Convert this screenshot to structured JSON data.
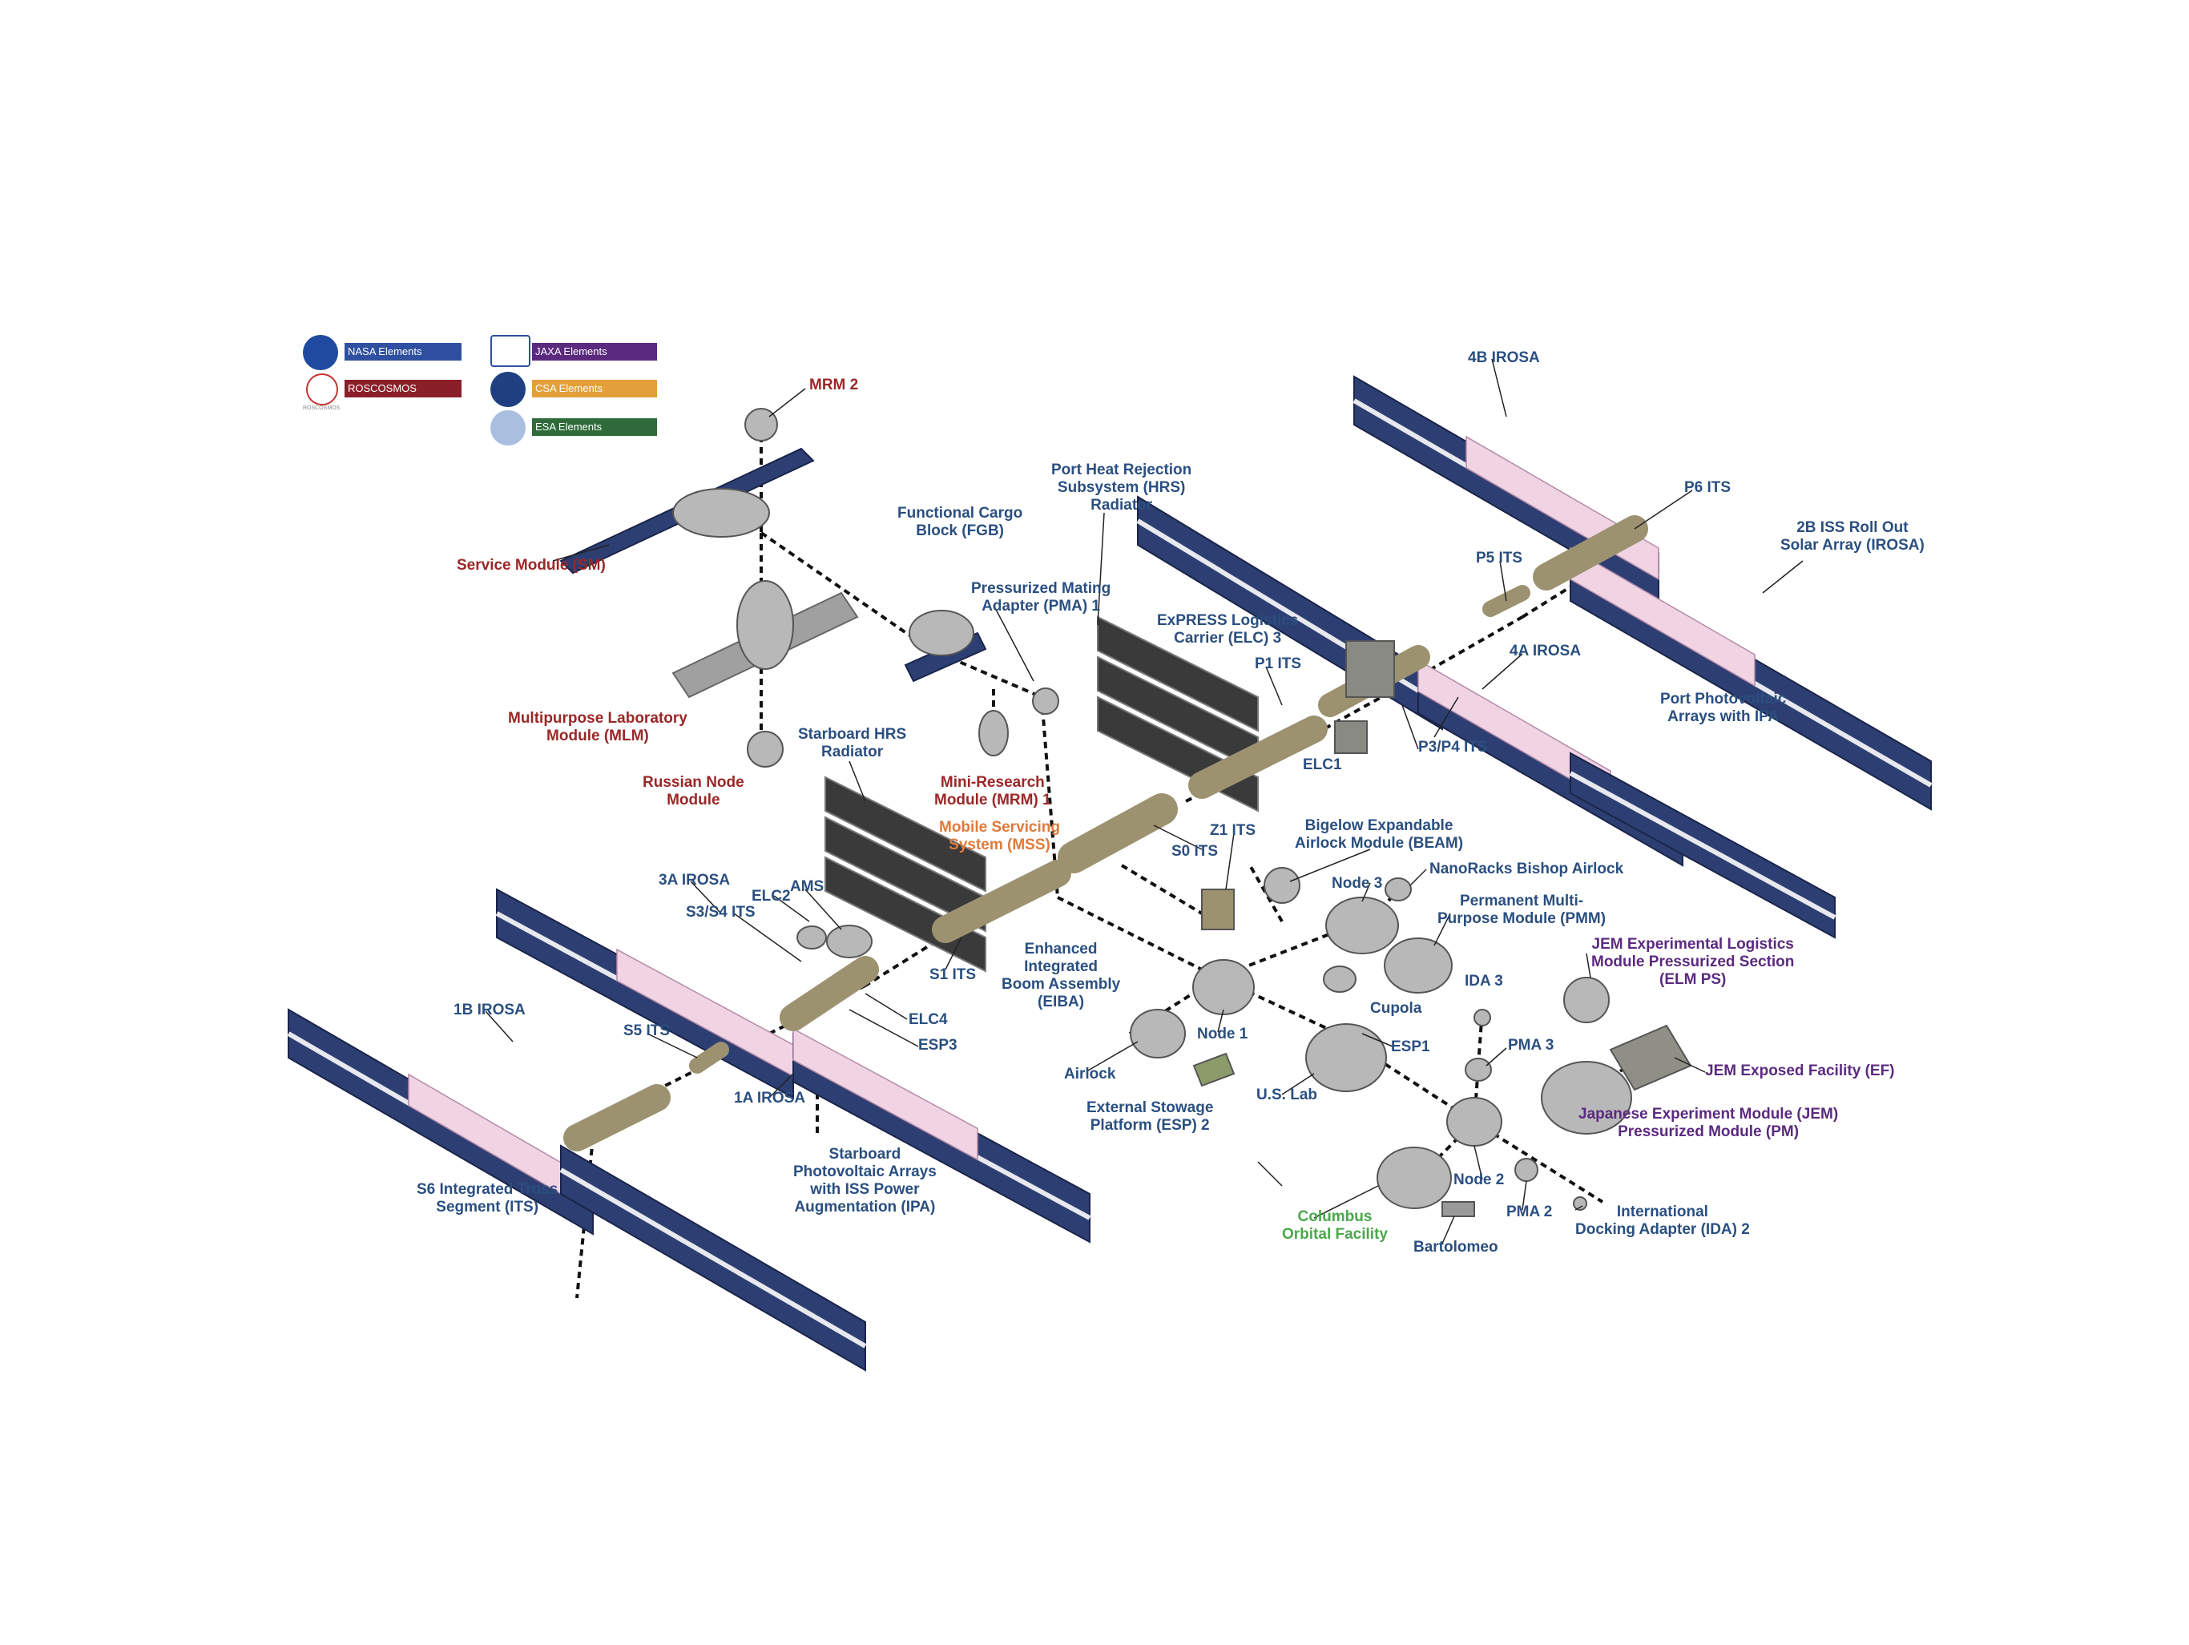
{
  "legend": {
    "nasa": {
      "label": "NASA Elements",
      "color": "#2f4fa0"
    },
    "roscosmos": {
      "label": "ROSCOSMOS Elements",
      "color": "#8a1f2a",
      "logo_text": "ROSCOSMOS"
    },
    "jaxa": {
      "label": "JAXA Elements",
      "color": "#5b2a7f"
    },
    "csa": {
      "label": "CSA Elements",
      "color": "#e3a03a"
    },
    "esa": {
      "label": "ESA Elements",
      "color": "#2f6b3a"
    }
  },
  "labels": {
    "mrm2": "MRM 2",
    "service_module": "Service Module (SM)",
    "mlm": "Multipurpose Laboratory\nModule (MLM)",
    "russian_node": "Russian Node\nModule",
    "fgb": "Functional Cargo\nBlock (FGB)",
    "pma1": "Pressurized Mating\nAdapter (PMA) 1",
    "mrm1": "Mini-Research\nModule (MRM) 1",
    "mss": "Mobile Servicing\nSystem (MSS)",
    "port_hrs": "Port Heat Rejection\nSubsystem (HRS)\nRadiator",
    "elc3": "ExPRESS Logistics\nCarrier (ELC) 3",
    "p1_its": "P1 ITS",
    "elc1": "ELC1",
    "irosa_4b": "4B IROSA",
    "p6_its": "P6 ITS",
    "irosa_2b": "2B ISS Roll Out\nSolar Array (IROSA)",
    "p5_its": "P5 ITS",
    "irosa_4a": "4A IROSA",
    "port_pv": "Port Photovoltaic\nArrays with IPA",
    "p3p4_its": "P3/P4 ITS",
    "stbd_hrs": "Starboard HRS\nRadiator",
    "s0_its": "S0 ITS",
    "z1_its": "Z1 ITS",
    "beam": "Bigelow Expandable\nAirlock Module (BEAM)",
    "node3": "Node 3",
    "nanoracks": "NanoRacks Bishop Airlock",
    "pmm": "Permanent Multi-\nPurpose Module (PMM)",
    "irosa_3a": "3A IROSA",
    "s3s4_its": "S3/S4 ITS",
    "elc2": "ELC2",
    "ams": "AMS",
    "s1_its": "S1 ITS",
    "eiba": "Enhanced\nIntegrated\nBoom Assembly\n(EIBA)",
    "elm_ps": "JEM Experimental Logistics\nModule Pressurized Section\n(ELM PS)",
    "ida3": "IDA 3",
    "cupola": "Cupola",
    "irosa_1b": "1B IROSA",
    "s5_its": "S5 ITS",
    "elc4": "ELC4",
    "esp3": "ESP3",
    "node1": "Node 1",
    "esp1": "ESP1",
    "pma3": "PMA 3",
    "jem_ef": "JEM Exposed Facility (EF)",
    "irosa_1a": "1A IROSA",
    "airlock": "Airlock",
    "us_lab": "U.S. Lab",
    "esp2": "External Stowage\nPlatform (ESP) 2",
    "jem_pm": "Japanese Experiment Module (JEM)\nPressurized Module (PM)",
    "stbd_pv": "Starboard\nPhotovoltaic Arrays\nwith ISS Power\nAugmentation (IPA)",
    "s6_its": "S6 Integrated Truss\nSegment (ITS)",
    "node2": "Node 2",
    "pma2": "PMA 2",
    "ida2": "International\nDocking Adapter (IDA) 2",
    "columbus": "Columbus\nOrbital Facility",
    "bartolomeo": "Bartolomeo"
  },
  "colors": {
    "solar_panel": "#2d3f72",
    "solar_edge": "#e8e8ef",
    "irosa": "#f0d4e4",
    "radiator": "#3a3a3a",
    "truss": "#9c9270",
    "module": "#b8b8b8",
    "connector": "#111111"
  }
}
